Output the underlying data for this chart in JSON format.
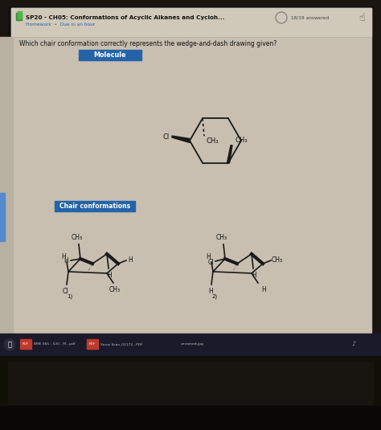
{
  "title": "SP20 - CH05: Conformations of Acyclic Alkanes and Cycloh...",
  "subtitle": "Homework  •  Due in an hour",
  "answered": "18/19 answered",
  "question": "Which chair conformation correctly represents the wedge-and-dash drawing given?",
  "content_bg": "#cfc3b2",
  "screen_bg": "#1e1a18",
  "header_bg": "#d8cfc0",
  "label_molecule": "Molecule",
  "label_chair": "Chair conformations",
  "label_color": "#2563a8",
  "taskbar_color": "#111111",
  "bezel_color": "#2a2018",
  "screen_color": "#c8bfb0"
}
